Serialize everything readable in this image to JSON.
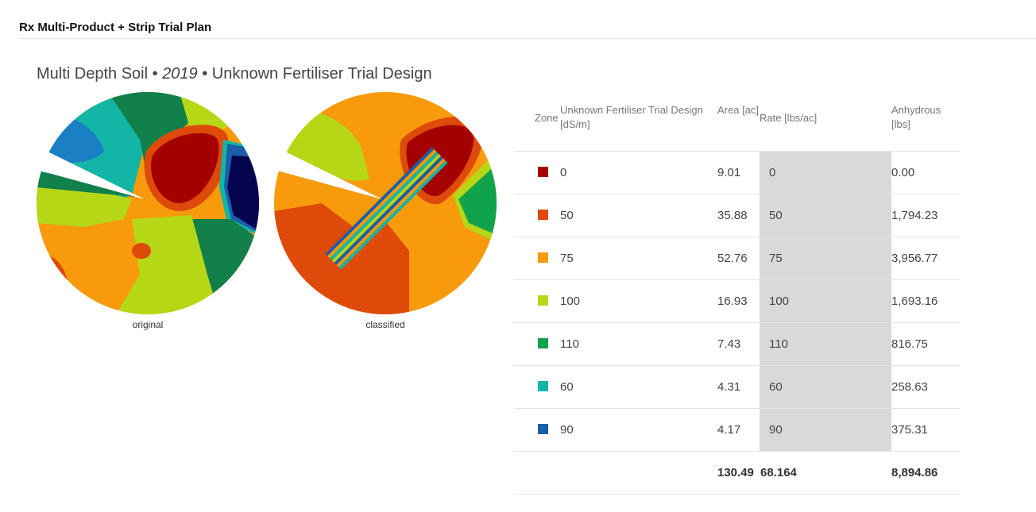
{
  "header": {
    "app_title": "Rx Multi-Product + Strip Trial Plan"
  },
  "report": {
    "title_prefix": "Multi Depth Soil • ",
    "year": "2019",
    "title_suffix": " • Unknown Fertiliser Trial Design"
  },
  "maps": [
    {
      "caption": "original"
    },
    {
      "caption": "classified"
    }
  ],
  "table": {
    "headers": {
      "zone": "Zone",
      "class": "Unknown Fertiliser Trial Design [dS/m]",
      "area": "Area [ac]",
      "rate": "Rate [lbs/ac]",
      "product": "Anhydrous [lbs]"
    },
    "rows": [
      {
        "color": "#a50000",
        "class": "0",
        "area": "9.01",
        "rate": "0",
        "product": "0.00"
      },
      {
        "color": "#de4a0a",
        "class": "50",
        "area": "35.88",
        "rate": "50",
        "product": "1,794.23"
      },
      {
        "color": "#f79a0c",
        "class": "75",
        "area": "52.76",
        "rate": "75",
        "product": "3,956.77"
      },
      {
        "color": "#b6d716",
        "class": "100",
        "area": "16.93",
        "rate": "100",
        "product": "1,693.16"
      },
      {
        "color": "#11a24c",
        "class": "110",
        "area": "7.43",
        "rate": "110",
        "product": "816.75"
      },
      {
        "color": "#12b5a6",
        "class": "60",
        "area": "4.31",
        "rate": "60",
        "product": "258.63"
      },
      {
        "color": "#1b5fa8",
        "class": "90",
        "area": "4.17",
        "rate": "90",
        "product": "375.31"
      }
    ],
    "totals": {
      "area": "130.49",
      "rate": "68.164",
      "product": "8,894.86"
    }
  }
}
